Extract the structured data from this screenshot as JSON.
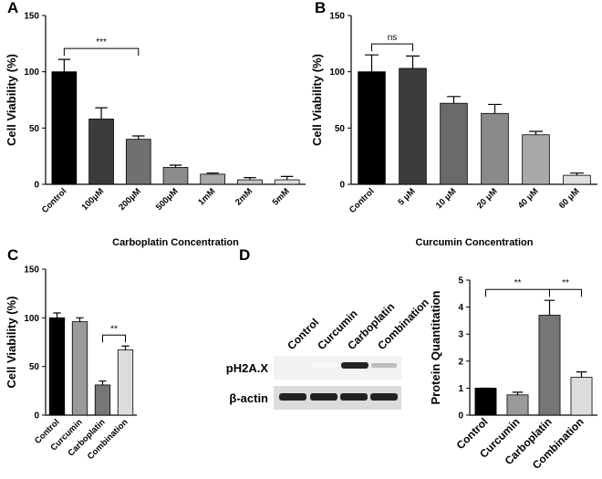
{
  "chart_data": [
    {
      "type": "bar",
      "panel": "A",
      "ylabel": "Cell Viability (%)",
      "xlabel": "Carboplatin Concentration",
      "categories": [
        "Control",
        "100μM",
        "200μM",
        "500μM",
        "1mM",
        "2mM",
        "5mM"
      ],
      "values": [
        100,
        58,
        40,
        15,
        9,
        4,
        4
      ],
      "errors": [
        11,
        10,
        3,
        2,
        1,
        2,
        3
      ],
      "colors": [
        "#000000",
        "#3c3c3c",
        "#707070",
        "#8c8c8c",
        "#a8a8a8",
        "#c4c4c4",
        "#dedede"
      ],
      "ylim": [
        0,
        150
      ],
      "yticks": [
        0,
        50,
        100,
        150
      ],
      "annotations": [
        {
          "text": "***",
          "between": [
            "Control",
            "200μM"
          ]
        }
      ]
    },
    {
      "type": "bar",
      "panel": "B",
      "ylabel": "Cell Viability (%)",
      "xlabel": "Curcumin Concentration",
      "categories": [
        "Control",
        "5 μM",
        "10 μM",
        "20 μM",
        "40 μM",
        "60 μM"
      ],
      "values": [
        100,
        103,
        72,
        63,
        44,
        8
      ],
      "errors": [
        15,
        11,
        6,
        8,
        3,
        2
      ],
      "colors": [
        "#000000",
        "#3c3c3c",
        "#6a6a6a",
        "#8a8a8a",
        "#a8a8a8",
        "#dedede"
      ],
      "ylim": [
        0,
        150
      ],
      "yticks": [
        0,
        50,
        100,
        150
      ],
      "annotations": [
        {
          "text": "ns",
          "between": [
            "Control",
            "5 μM"
          ]
        }
      ]
    },
    {
      "type": "bar",
      "panel": "C",
      "ylabel": "Cell Viability (%)",
      "categories": [
        "Control",
        "Curcumin",
        "Carboplatin",
        "Combination"
      ],
      "values": [
        100,
        96,
        31,
        67
      ],
      "errors": [
        5,
        4,
        4,
        4
      ],
      "colors": [
        "#000000",
        "#9a9a9a",
        "#767676",
        "#dcdcdc"
      ],
      "ylim": [
        0,
        150
      ],
      "yticks": [
        0,
        50,
        100,
        150
      ],
      "annotations": [
        {
          "text": "**",
          "between": [
            "Carboplatin",
            "Combination"
          ]
        }
      ]
    },
    {
      "type": "bar",
      "panel": "D",
      "ylabel": "Protein Quantitation",
      "categories": [
        "Control",
        "Curcumin",
        "Carboplatin",
        "Combination"
      ],
      "values": [
        1,
        0.75,
        3.7,
        1.4
      ],
      "errors": [
        0,
        0.1,
        0.55,
        0.2
      ],
      "colors": [
        "#000000",
        "#9a9a9a",
        "#767676",
        "#dcdcdc"
      ],
      "ylim": [
        0,
        5
      ],
      "yticks": [
        0,
        1,
        2,
        3,
        4,
        5
      ],
      "annotations": [
        {
          "text": "**",
          "between": [
            "Control",
            "Carboplatin"
          ]
        },
        {
          "text": "**",
          "between": [
            "Carboplatin",
            "Combination"
          ]
        }
      ]
    }
  ],
  "blot": {
    "lanes": [
      "Control",
      "Curcumin",
      "Carboplatin",
      "Combination"
    ],
    "rows": [
      "pH2A.X",
      "β-actin"
    ]
  }
}
